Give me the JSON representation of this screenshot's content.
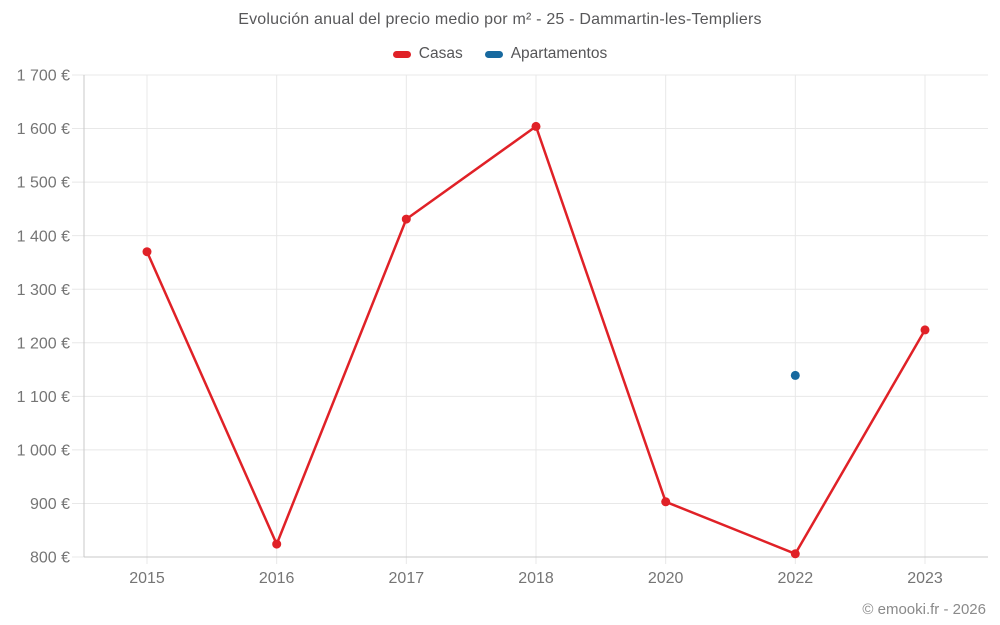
{
  "chart": {
    "title": "Evolución anual del precio medio por m² - 25 - Dammartin-les-Templiers",
    "footer_credit": "© emooki.fr - 2026"
  },
  "legend": {
    "items": [
      {
        "label": "Casas",
        "color": "#e02127"
      },
      {
        "label": "Apartamentos",
        "color": "#17699f"
      }
    ]
  },
  "chart_data": {
    "type": "line",
    "title": "Evolución anual del precio medio por m² - 25 - Dammartin-les-Templiers",
    "categories": [
      "2015",
      "2016",
      "2017",
      "2018",
      "2020",
      "2022",
      "2023"
    ],
    "series": [
      {
        "name": "Casas",
        "color": "#e02127",
        "values": [
          1370,
          824,
          1431,
          1604,
          903,
          806,
          1224
        ]
      },
      {
        "name": "Apartamentos",
        "color": "#17699f",
        "values": [
          null,
          null,
          null,
          null,
          null,
          1139,
          null
        ]
      }
    ],
    "xlabel": "",
    "ylabel": "",
    "ylim": [
      800,
      1700
    ],
    "y_tick_step": 100,
    "y_tick_labels": [
      "800 €",
      "900 €",
      "1 000 €",
      "1 100 €",
      "1 200 €",
      "1 300 €",
      "1 400 €",
      "1 500 €",
      "1 600 €",
      "1 700 €"
    ],
    "currency": "€",
    "grid": true,
    "legend_position": "top"
  },
  "colors": {
    "grid": "#e8e8e8",
    "axis": "#c9c9c9",
    "tick_text": "#757575"
  }
}
